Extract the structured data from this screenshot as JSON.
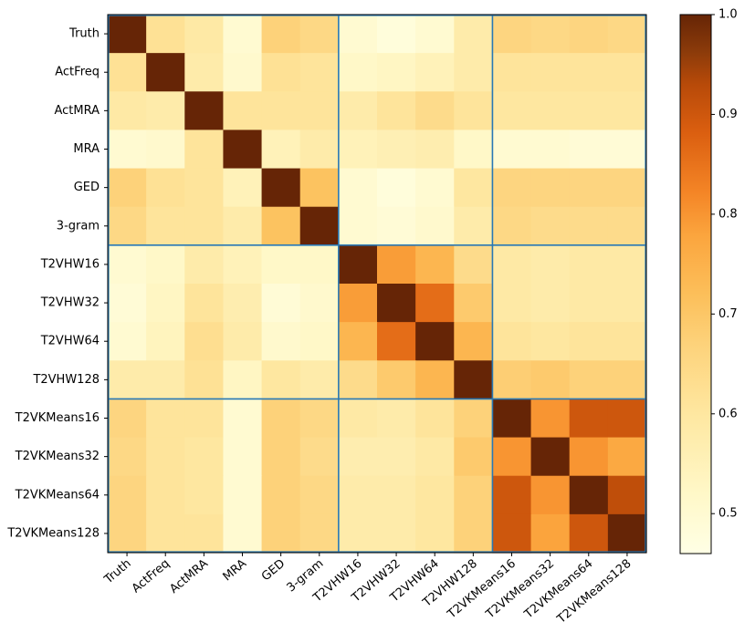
{
  "chart_data": {
    "type": "heatmap",
    "title": "",
    "xlabel": "",
    "ylabel": "",
    "categories": [
      "Truth",
      "ActFreq",
      "ActMRA",
      "MRA",
      "GED",
      "3-gram",
      "T2VHW16",
      "T2VHW32",
      "T2VHW64",
      "T2VHW128",
      "T2VKMeans16",
      "T2VKMeans32",
      "T2VKMeans64",
      "T2VKMeans128"
    ],
    "matrix": [
      [
        1.0,
        0.62,
        0.59,
        0.5,
        0.67,
        0.65,
        0.5,
        0.48,
        0.5,
        0.58,
        0.66,
        0.65,
        0.66,
        0.65
      ],
      [
        0.62,
        1.0,
        0.58,
        0.51,
        0.62,
        0.61,
        0.52,
        0.53,
        0.55,
        0.58,
        0.61,
        0.61,
        0.61,
        0.61
      ],
      [
        0.59,
        0.58,
        1.0,
        0.61,
        0.61,
        0.61,
        0.58,
        0.61,
        0.64,
        0.61,
        0.6,
        0.6,
        0.6,
        0.6
      ],
      [
        0.5,
        0.51,
        0.61,
        1.0,
        0.55,
        0.58,
        0.55,
        0.56,
        0.57,
        0.52,
        0.5,
        0.5,
        0.49,
        0.49
      ],
      [
        0.67,
        0.62,
        0.61,
        0.55,
        1.0,
        0.71,
        0.5,
        0.48,
        0.5,
        0.6,
        0.66,
        0.66,
        0.66,
        0.66
      ],
      [
        0.65,
        0.61,
        0.61,
        0.58,
        0.71,
        1.0,
        0.5,
        0.49,
        0.51,
        0.58,
        0.65,
        0.64,
        0.64,
        0.64
      ],
      [
        0.5,
        0.52,
        0.58,
        0.55,
        0.52,
        0.52,
        1.0,
        0.79,
        0.74,
        0.64,
        0.59,
        0.58,
        0.59,
        0.59
      ],
      [
        0.49,
        0.53,
        0.61,
        0.57,
        0.49,
        0.51,
        0.79,
        1.0,
        0.86,
        0.69,
        0.59,
        0.58,
        0.59,
        0.59
      ],
      [
        0.5,
        0.54,
        0.63,
        0.58,
        0.51,
        0.52,
        0.74,
        0.86,
        1.0,
        0.74,
        0.61,
        0.6,
        0.61,
        0.61
      ],
      [
        0.58,
        0.58,
        0.62,
        0.53,
        0.6,
        0.58,
        0.64,
        0.69,
        0.74,
        1.0,
        0.68,
        0.69,
        0.67,
        0.67
      ],
      [
        0.66,
        0.61,
        0.61,
        0.5,
        0.67,
        0.65,
        0.59,
        0.58,
        0.61,
        0.67,
        1.0,
        0.8,
        0.9,
        0.9
      ],
      [
        0.65,
        0.61,
        0.6,
        0.5,
        0.67,
        0.64,
        0.57,
        0.57,
        0.59,
        0.69,
        0.8,
        1.0,
        0.8,
        0.77
      ],
      [
        0.66,
        0.61,
        0.6,
        0.5,
        0.67,
        0.65,
        0.58,
        0.58,
        0.6,
        0.67,
        0.9,
        0.8,
        1.0,
        0.92
      ],
      [
        0.66,
        0.61,
        0.61,
        0.5,
        0.67,
        0.65,
        0.58,
        0.58,
        0.6,
        0.67,
        0.9,
        0.78,
        0.9,
        1.0
      ]
    ],
    "group_boundaries_after_index": [
      5,
      9
    ],
    "colormap": "YlOrBr",
    "color_range": [
      0.46,
      1.0
    ],
    "colorbar_ticks": [
      "0.5",
      "0.6",
      "0.7",
      "0.8",
      "0.9",
      "1.0"
    ],
    "colorbar_tick_values": [
      0.5,
      0.6,
      0.7,
      0.8,
      0.9,
      1.0
    ],
    "grid": false,
    "group_line_color": "#2878b5"
  }
}
